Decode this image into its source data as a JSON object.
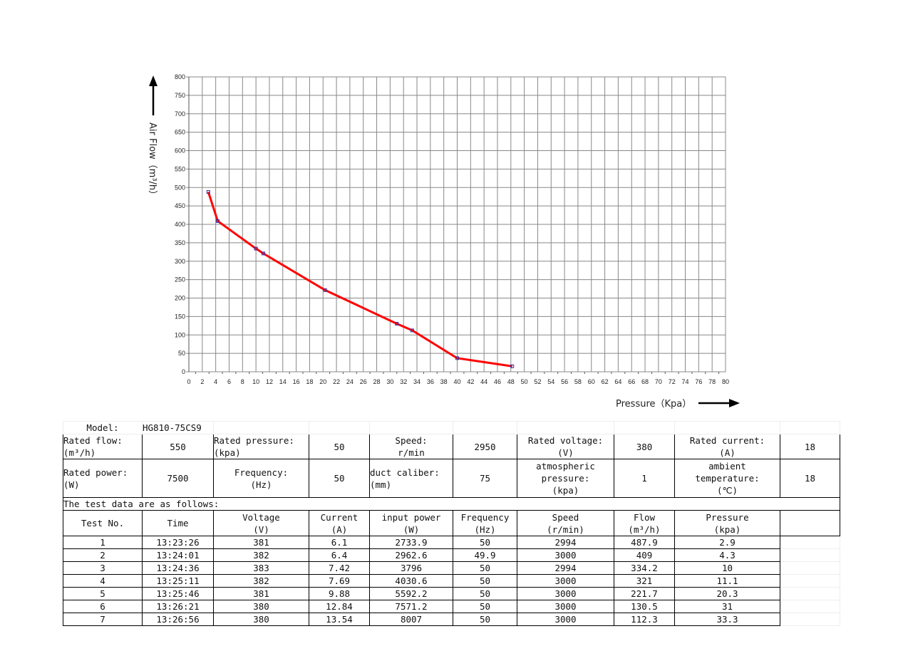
{
  "chart_data": {
    "type": "line",
    "title": "",
    "xlabel": "Pressure（Kpa）",
    "ylabel": "Air Flow（m³/h）",
    "xlim": [
      0,
      80
    ],
    "ylim": [
      0,
      800
    ],
    "xticks": [
      0,
      2,
      4,
      6,
      8,
      10,
      12,
      14,
      16,
      18,
      20,
      22,
      24,
      26,
      28,
      30,
      32,
      34,
      36,
      38,
      40,
      42,
      44,
      46,
      48,
      50,
      52,
      54,
      56,
      58,
      60,
      62,
      64,
      66,
      68,
      70,
      72,
      74,
      76,
      78,
      80
    ],
    "yticks": [
      0,
      50,
      100,
      150,
      200,
      250,
      300,
      350,
      400,
      450,
      500,
      550,
      600,
      650,
      700,
      750,
      800
    ],
    "grid": true,
    "series": [
      {
        "name": "Air Flow",
        "color": "#ff0000",
        "x": [
          2.9,
          4.3,
          10,
          11.1,
          20.3,
          31,
          33.3,
          40,
          48.2
        ],
        "y": [
          487.9,
          409,
          334.2,
          321,
          221.7,
          130.5,
          112.3,
          37,
          15
        ]
      }
    ]
  },
  "table": {
    "model_label": "Model:",
    "model_value": "HG810-75CS9",
    "spec_rows": [
      [
        "Rated flow:\n(m³/h)",
        "550",
        "Rated pressure:\n(kpa)",
        "50",
        "Speed:\nr/min",
        "2950",
        "Rated voltage:\n(V)",
        "380",
        "Rated current:\n(A)",
        "18"
      ],
      [
        "Rated power:\n(W)",
        "7500",
        "Frequency:\n(Hz)",
        "50",
        "duct caliber:\n(mm)",
        "75",
        "atmospheric\npressure:\n(kpa)",
        "1",
        "ambient\ntemperature:\n(℃)",
        "18"
      ]
    ],
    "intro": "The test data are as follows:",
    "headers": [
      "Test No.",
      "Time",
      "Voltage\n(V)",
      "Current\n(A)",
      "input power\n(W)",
      "Frequency\n(Hz)",
      "Speed\n(r/min)",
      "Flow\n(m³/h)",
      "Pressure\n(kpa)"
    ],
    "rows": [
      [
        "1",
        "13:23:26",
        "381",
        "6.1",
        "2733.9",
        "50",
        "2994",
        "487.9",
        "2.9"
      ],
      [
        "2",
        "13:24:01",
        "382",
        "6.4",
        "2962.6",
        "49.9",
        "3000",
        "409",
        "4.3"
      ],
      [
        "3",
        "13:24:36",
        "383",
        "7.42",
        "3796",
        "50",
        "2994",
        "334.2",
        "10"
      ],
      [
        "4",
        "13:25:11",
        "382",
        "7.69",
        "4030.6",
        "50",
        "3000",
        "321",
        "11.1"
      ],
      [
        "5",
        "13:25:46",
        "381",
        "9.88",
        "5592.2",
        "50",
        "3000",
        "221.7",
        "20.3"
      ],
      [
        "6",
        "13:26:21",
        "380",
        "12.84",
        "7571.2",
        "50",
        "3000",
        "130.5",
        "31"
      ],
      [
        "7",
        "13:26:56",
        "380",
        "13.54",
        "8007",
        "50",
        "3000",
        "112.3",
        "33.3"
      ]
    ]
  }
}
